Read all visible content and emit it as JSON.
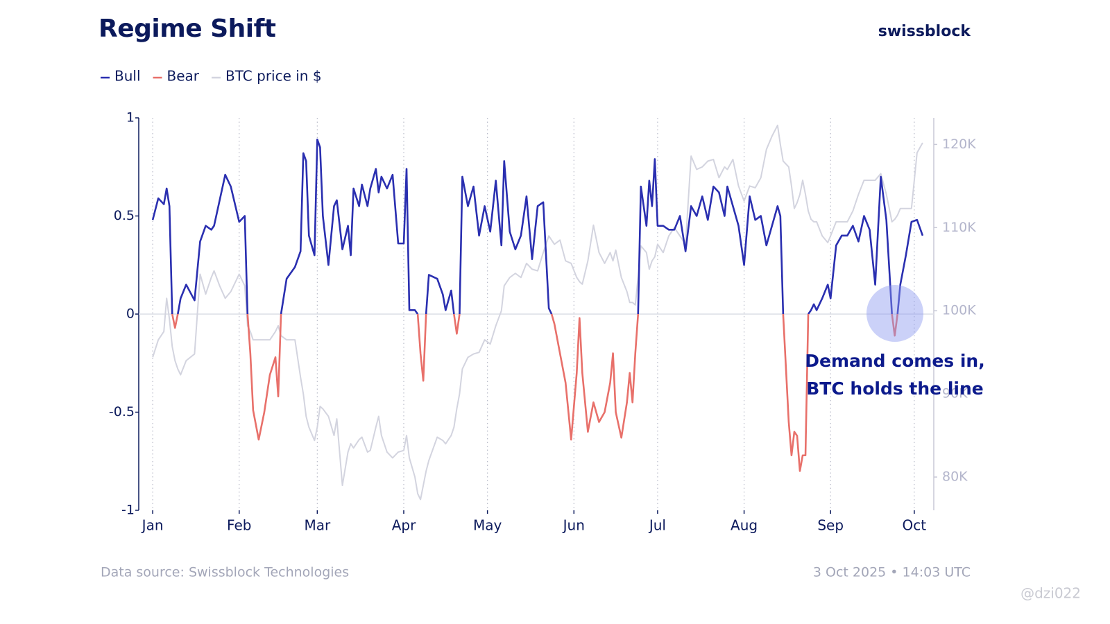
{
  "chart_data": {
    "type": "line",
    "title": "Regime Shift",
    "brand": "swissblock",
    "source": "Data source: Swissblock Technologies",
    "timestamp": "3 Oct 2025 • 14:03 UTC",
    "watermark": "@dzi022",
    "annotation": [
      "Demand comes in,",
      "BTC holds the line"
    ],
    "x": [
      0,
      2,
      4,
      5,
      6,
      7,
      8,
      9,
      10,
      12,
      15,
      17,
      19,
      21,
      22,
      24,
      26,
      28,
      31,
      33,
      34,
      35,
      36,
      38,
      40,
      42,
      44,
      45,
      46,
      48,
      51,
      53,
      54,
      55,
      56,
      58,
      59,
      60,
      61,
      63,
      65,
      66,
      68,
      70,
      71,
      72,
      74,
      75,
      77,
      78,
      80,
      81,
      82,
      84,
      86,
      88,
      90,
      91,
      92,
      94,
      95,
      96,
      97,
      98,
      99,
      102,
      104,
      105,
      107,
      108,
      109,
      110,
      111,
      113,
      115,
      117,
      119,
      121,
      123,
      125,
      126,
      128,
      130,
      132,
      134,
      136,
      138,
      140,
      142,
      143,
      144,
      146,
      148,
      150,
      152,
      153,
      154,
      156,
      158,
      160,
      162,
      164,
      165,
      166,
      168,
      170,
      171,
      172,
      173,
      174,
      175,
      177,
      178,
      179,
      180,
      181,
      183,
      185,
      187,
      189,
      191,
      193,
      195,
      197,
      199,
      201,
      203,
      205,
      206,
      208,
      210,
      212,
      214,
      216,
      218,
      220,
      222,
      224,
      225,
      226,
      228,
      229,
      230,
      231,
      232,
      233,
      234,
      235,
      236,
      237,
      238,
      240,
      242,
      243,
      245,
      247,
      249,
      251,
      253,
      255,
      257,
      259,
      261,
      263,
      265,
      266,
      267,
      268,
      270,
      272,
      274,
      276
    ],
    "xlim": [
      -5,
      280
    ],
    "xticks": [
      {
        "value": 0,
        "label": "Jan"
      },
      {
        "value": 31,
        "label": "Feb"
      },
      {
        "value": 59,
        "label": "Mar"
      },
      {
        "value": 90,
        "label": "Apr"
      },
      {
        "value": 120,
        "label": "May"
      },
      {
        "value": 151,
        "label": "Jun"
      },
      {
        "value": 181,
        "label": "Jul"
      },
      {
        "value": 212,
        "label": "Aug"
      },
      {
        "value": 243,
        "label": "Sep"
      },
      {
        "value": 273,
        "label": "Oct"
      }
    ],
    "ylim": [
      -1,
      1
    ],
    "yticks": [
      -1,
      -0.5,
      0,
      0.5,
      1
    ],
    "y2lim": [
      76000,
      123200
    ],
    "y2ticks": [
      {
        "value": 80000,
        "label": "80K"
      },
      {
        "value": 90000,
        "label": "90K"
      },
      {
        "value": 100000,
        "label": "100K"
      },
      {
        "value": 110000,
        "label": "110K"
      },
      {
        "value": 120000,
        "label": "120K"
      }
    ],
    "grid": true,
    "series": [
      {
        "name": "Bull",
        "color": "#2a2fb0",
        "values": [
          0.48,
          0.59,
          0.56,
          0.64,
          0.55,
          0,
          null,
          0,
          0.08,
          0.15,
          0.07,
          0.37,
          0.45,
          0.43,
          0.45,
          0.58,
          0.71,
          0.65,
          0.47,
          0.5,
          0,
          null,
          null,
          null,
          null,
          null,
          null,
          null,
          0,
          0.18,
          0.24,
          0.32,
          0.82,
          0.78,
          0.4,
          0.3,
          0.89,
          0.85,
          0.5,
          0.25,
          0.55,
          0.58,
          0.33,
          0.45,
          0.3,
          0.64,
          0.55,
          0.66,
          0.55,
          0.64,
          0.74,
          0.62,
          0.7,
          0.64,
          0.71,
          0.36,
          0.36,
          0.74,
          0.02,
          0.02,
          0,
          null,
          null,
          0,
          0.2,
          0.18,
          0.1,
          0.02,
          0.12,
          0,
          null,
          0,
          0.7,
          0.55,
          0.65,
          0.4,
          0.55,
          0.42,
          0.68,
          0.35,
          0.78,
          0.42,
          0.33,
          0.4,
          0.6,
          0.28,
          0.55,
          0.57,
          0.03,
          0,
          null,
          null,
          null,
          null,
          null,
          null,
          null,
          null,
          null,
          null,
          null,
          null,
          null,
          null,
          null,
          null,
          null,
          null,
          null,
          0,
          0.65,
          0.45,
          0.68,
          0.55,
          0.79,
          0.45,
          0.45,
          0.43,
          0.43,
          0.5,
          0.32,
          0.55,
          0.5,
          0.6,
          0.48,
          0.65,
          0.62,
          0.5,
          0.65,
          0.55,
          0.45,
          0.25,
          0.6,
          0.48,
          0.5,
          0.35,
          0.45,
          0.55,
          0.5,
          0,
          null,
          null,
          null,
          null,
          null,
          null,
          null,
          0,
          0.02,
          0.05,
          0.02,
          0.08,
          0.15,
          0.08,
          0.35,
          0.4,
          0.4,
          0.45,
          0.37,
          0.5,
          0.43,
          0.15,
          0.7,
          0.48,
          0,
          null,
          0,
          0.15,
          0.3,
          0.47,
          0.48,
          0.4
        ]
      },
      {
        "name": "Bear",
        "color": "#e8706a",
        "values": [
          null,
          null,
          null,
          null,
          null,
          0,
          -0.07,
          0,
          null,
          null,
          null,
          null,
          null,
          null,
          null,
          null,
          null,
          null,
          null,
          null,
          0,
          -0.2,
          -0.49,
          -0.64,
          -0.5,
          -0.31,
          -0.22,
          -0.42,
          0,
          null,
          null,
          null,
          null,
          null,
          null,
          null,
          null,
          null,
          null,
          null,
          null,
          null,
          null,
          null,
          null,
          null,
          null,
          null,
          null,
          null,
          null,
          null,
          null,
          null,
          null,
          null,
          null,
          null,
          null,
          null,
          0,
          -0.2,
          -0.34,
          0,
          null,
          null,
          null,
          null,
          null,
          0,
          -0.1,
          0,
          null,
          null,
          null,
          null,
          null,
          null,
          null,
          null,
          null,
          null,
          null,
          null,
          null,
          null,
          null,
          null,
          null,
          0,
          -0.05,
          -0.2,
          -0.35,
          -0.64,
          -0.3,
          -0.02,
          -0.3,
          -0.6,
          -0.45,
          -0.55,
          -0.5,
          -0.35,
          -0.2,
          -0.5,
          -0.63,
          -0.45,
          -0.3,
          -0.45,
          -0.2,
          0,
          null,
          null,
          null,
          null,
          null,
          null,
          null,
          null,
          null,
          null,
          null,
          null,
          null,
          null,
          null,
          null,
          null,
          null,
          null,
          null,
          null,
          null,
          null,
          null,
          null,
          null,
          null,
          null,
          null,
          0,
          -0.55,
          -0.72,
          -0.6,
          -0.62,
          -0.8,
          -0.72,
          -0.72,
          0,
          null,
          null,
          null,
          null,
          null,
          null,
          null,
          null,
          null,
          null,
          null,
          null,
          null,
          null,
          null,
          null,
          0,
          -0.11,
          0,
          null,
          null,
          null,
          null,
          null
        ]
      },
      {
        "name": "BTC price in $",
        "color": "#d3d4df",
        "axis": "y2",
        "values": [
          94400,
          96500,
          97500,
          101500,
          99000,
          95700,
          94000,
          93000,
          92300,
          94000,
          94800,
          104400,
          102000,
          104000,
          104800,
          103000,
          101500,
          102300,
          104400,
          103000,
          98200,
          97500,
          96500,
          96500,
          96500,
          96500,
          97500,
          98200,
          97000,
          96500,
          96500,
          92000,
          90000,
          87300,
          86000,
          84400,
          86000,
          88500,
          88200,
          87300,
          85000,
          87000,
          79000,
          83000,
          84000,
          83500,
          84500,
          84800,
          83000,
          83200,
          86000,
          87300,
          85000,
          83000,
          82300,
          83000,
          83200,
          85000,
          82300,
          80000,
          78000,
          77300,
          79000,
          80700,
          82000,
          84800,
          84400,
          84000,
          85000,
          86000,
          88200,
          90000,
          93000,
          94400,
          94800,
          95000,
          96500,
          96000,
          98200,
          100000,
          103000,
          104000,
          104500,
          104000,
          105700,
          105000,
          104800,
          107000,
          109000,
          108500,
          108000,
          108500,
          106000,
          105700,
          104000,
          103500,
          103200,
          106000,
          110300,
          107000,
          105700,
          107000,
          106000,
          107300,
          104000,
          102300,
          101000,
          101000,
          100700,
          104000,
          107800,
          107000,
          105000,
          106000,
          106500,
          108000,
          107000,
          109000,
          110000,
          109000,
          108000,
          118600,
          117000,
          117300,
          118000,
          118200,
          116000,
          117300,
          117000,
          118200,
          115000,
          113200,
          115000,
          114800,
          116000,
          119400,
          121000,
          122300,
          120000,
          118000,
          117300,
          115000,
          112300,
          113000,
          114000,
          115700,
          114000,
          112000,
          111000,
          110700,
          110700,
          109000,
          108200,
          109000,
          110700,
          110700,
          110700,
          112000,
          114000,
          115700,
          115700,
          115700,
          116500,
          114000,
          110700,
          111000,
          111500,
          112300,
          112300,
          112300,
          119000,
          120200
        ]
      }
    ]
  }
}
